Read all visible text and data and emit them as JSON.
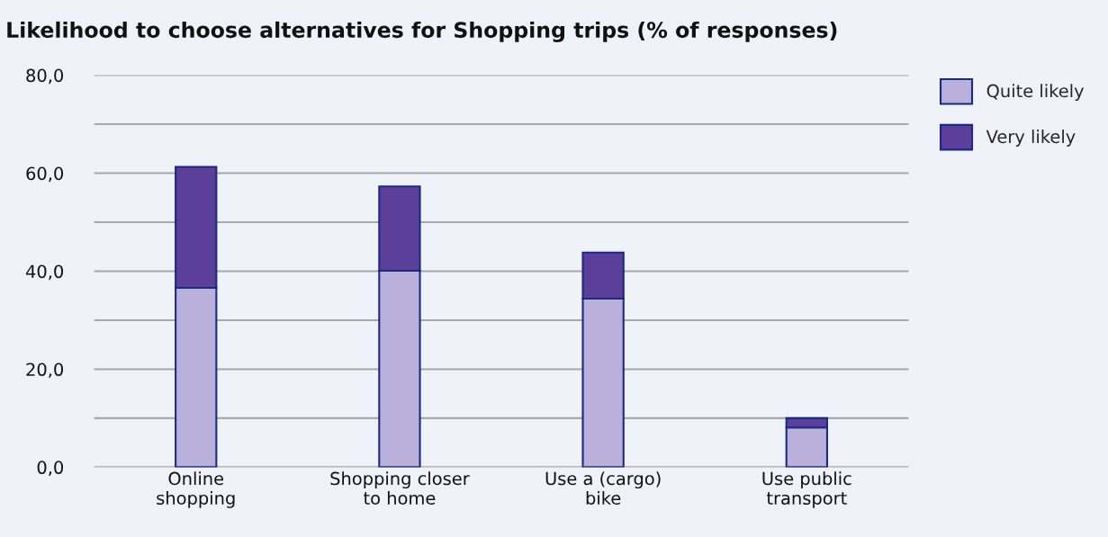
{
  "chart_data": {
    "type": "bar",
    "title": "Likelihood to choose alternatives for Shopping trips (% of responses)",
    "categories": [
      "Online\nshopping",
      "Shopping closer\nto home",
      "Use a (cargo)\nbike",
      "Use public\ntransport"
    ],
    "stacked": true,
    "series": [
      {
        "name": "Quite likely",
        "color": "#b9b0dc",
        "values": [
          36.6,
          40.1,
          34.4,
          8.1
        ]
      },
      {
        "name": "Very likely",
        "color": "#5c3f9b",
        "values": [
          24.7,
          17.2,
          9.4,
          1.9
        ]
      }
    ],
    "ylim": [
      0,
      80
    ],
    "yticks": [
      {
        "value": 0,
        "label": "0,0"
      },
      {
        "value": 10,
        "label": null
      },
      {
        "value": 20,
        "label": "20,0"
      },
      {
        "value": 30,
        "label": null
      },
      {
        "value": 40,
        "label": "40,0"
      },
      {
        "value": 50,
        "label": null
      },
      {
        "value": 60,
        "label": "60,0"
      },
      {
        "value": 70,
        "label": null
      },
      {
        "value": 80,
        "label": "80,0"
      }
    ],
    "grid": "y",
    "legend": "top right"
  }
}
